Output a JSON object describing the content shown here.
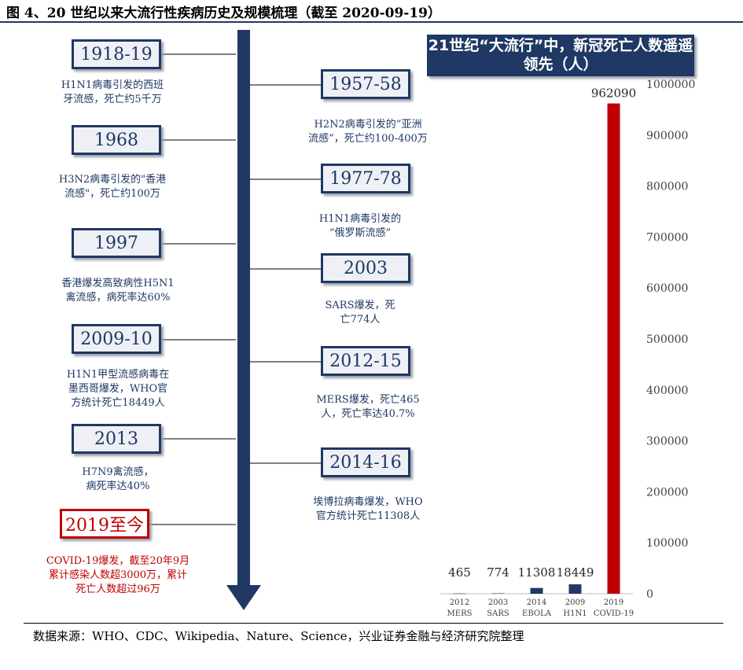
{
  "title": "图 4、20 世纪以来大流行性疾病历史及规模梳理（截至 2020-09-19）",
  "source": "数据来源：WHO、CDC、Wikipedia、Nature、Science，兴业证券金融与经济研究院整理",
  "colors": {
    "navy": "#1f3864",
    "red": "#c00000",
    "connector": "#7f7f7f"
  },
  "timeline": {
    "left": [
      {
        "year": "1918-19",
        "desc": [
          "H1N1病毒引发的西班",
          "牙流感，死亡约5千万"
        ]
      },
      {
        "year": "1968",
        "desc": [
          "H3N2病毒引发的\"香港",
          "流感\"，死亡约100万"
        ]
      },
      {
        "year": "1997",
        "desc": [
          "香港爆发高致病性H5N1",
          "禽流感，病死率达60%"
        ]
      },
      {
        "year": "2009-10",
        "desc": [
          "H1N1甲型流感病毒在",
          "墨西哥爆发，WHO官",
          "方统计死亡18449人"
        ]
      },
      {
        "year": "2013",
        "desc": [
          "H7N9禽流感，",
          "病死率达40%"
        ]
      },
      {
        "year": "2019至今",
        "desc": [
          "COVID-19爆发，截至20年9月",
          "累计感染人数超3000万，累计",
          "死亡人数超过96万"
        ],
        "current": true
      }
    ],
    "right": [
      {
        "year": "1957-58",
        "desc": [
          "H2N2病毒引发的“亚洲",
          "流感”，死亡约100-400万"
        ]
      },
      {
        "year": "1977-78",
        "desc": [
          "H1N1病毒引发的",
          "“俄罗斯流感”"
        ]
      },
      {
        "year": "2003",
        "desc": [
          "SARS爆发，死",
          "亡774人"
        ]
      },
      {
        "year": "2012-15",
        "desc": [
          "MERS爆发，死亡465",
          "人，死亡率达40.7%"
        ]
      },
      {
        "year": "2014-16",
        "desc": [
          "埃博拉病毒爆发，WHO",
          "官方统计死亡11308人"
        ]
      }
    ]
  },
  "chart_data": {
    "type": "bar",
    "title": "21世纪“大流行”中，新冠死亡人数遥遥领先（人）",
    "categories": [
      {
        "year": "2012",
        "name": "MERS"
      },
      {
        "year": "2003",
        "name": "SARS"
      },
      {
        "year": "2014",
        "name": "EBOLA"
      },
      {
        "year": "2009",
        "name": "H1N1"
      },
      {
        "year": "2019",
        "name": "COVID-19"
      }
    ],
    "values": [
      465,
      774,
      11308,
      18449,
      962090
    ],
    "data_labels": [
      "465",
      "774",
      "11308",
      "18449",
      "962090"
    ],
    "bar_colors": [
      "#1f3864",
      "#1f3864",
      "#1f3864",
      "#1f3864",
      "#c00000"
    ],
    "ylim": [
      0,
      1000000
    ],
    "yticks": [
      0,
      100000,
      200000,
      300000,
      400000,
      500000,
      600000,
      700000,
      800000,
      900000,
      1000000
    ],
    "ytick_labels": [
      "0",
      "100000",
      "200000",
      "300000",
      "400000",
      "500000",
      "600000",
      "700000",
      "800000",
      "900000",
      "1000000"
    ],
    "y_axis_side": "right",
    "grid": false
  }
}
